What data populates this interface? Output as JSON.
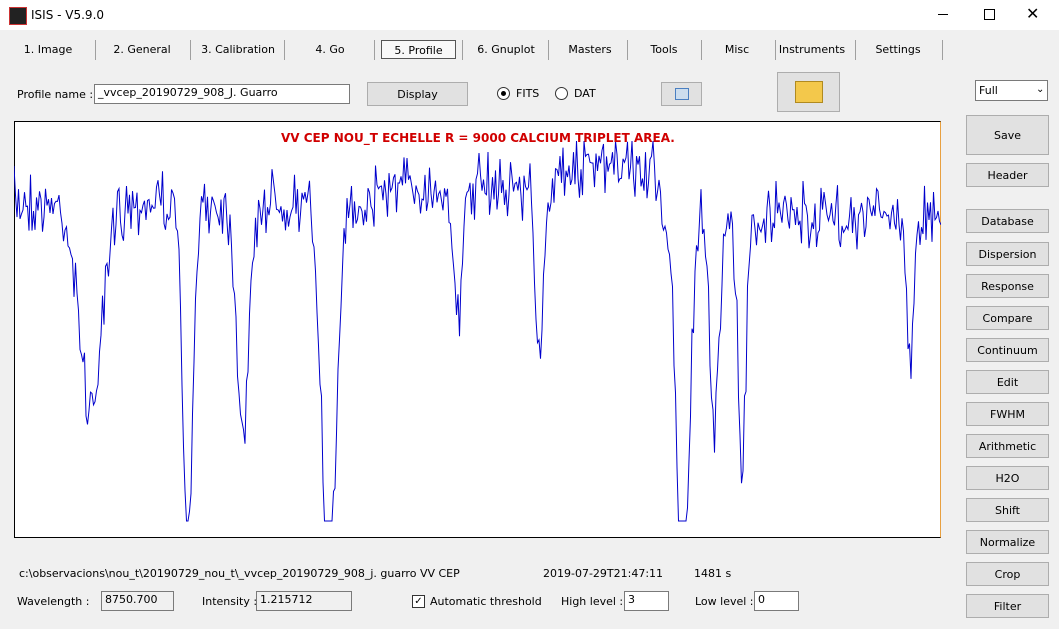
{
  "window": {
    "title": "ISIS - V5.9.0"
  },
  "tabs": [
    "1. Image",
    "2. General",
    "3. Calibration",
    "4. Go",
    "5. Profile",
    "6. Gnuplot",
    "Masters",
    "Tools",
    "Misc",
    "Instruments",
    "Settings"
  ],
  "profile": {
    "label": "Profile name :",
    "value": "_vvcep_20190729_908_J. Guarro",
    "display": "Display",
    "fits": "FITS",
    "dat": "DAT"
  },
  "plot": {
    "title": "VV CEP NOU_T ECHELLE  R = 9000  CALCIUM TRIPLET AREA."
  },
  "side": {
    "select": "Full",
    "buttons": [
      "Save",
      "Header",
      "Database",
      "Dispersion",
      "Response",
      "Compare",
      "Continuum",
      "Edit",
      "FWHM",
      "Arithmetic",
      "H2O",
      "Shift",
      "Normalize",
      "Crop",
      "Filter"
    ]
  },
  "status": {
    "path": "c:\\observacions\\nou_t\\20190729_nou_t\\_vvcep_20190729_908_j. guarro VV CEP",
    "date": "2019-07-29T21:47:11",
    "exposure": "1481 s"
  },
  "fields": {
    "wavelength_label": "Wavelength :",
    "wavelength": "8750.700",
    "intensity_label": "Intensity :",
    "intensity": "1.215712",
    "auto": "Automatic threshold",
    "high_label": "High level :",
    "high": "3",
    "low_label": "Low level :",
    "low": "0"
  }
}
